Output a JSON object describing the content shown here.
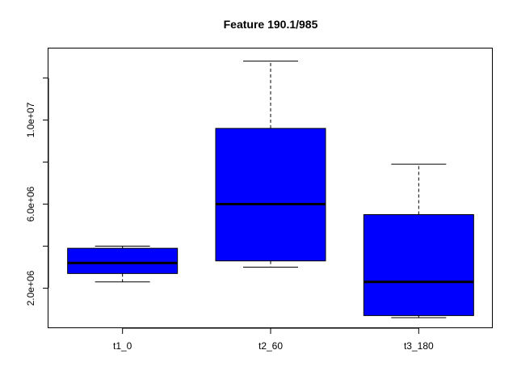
{
  "chart_data": {
    "type": "boxplot",
    "title": "Feature  190.1/985",
    "xlabel": "",
    "ylabel": "",
    "categories": [
      "t1_0",
      "t2_60",
      "t3_180"
    ],
    "boxes": [
      {
        "name": "t1_0",
        "whisker_low": 2300000,
        "q1": 2700000,
        "median": 3200000,
        "q3": 3900000,
        "whisker_high": 4000000
      },
      {
        "name": "t2_60",
        "whisker_low": 3000000,
        "q1": 3300000,
        "median": 6000000,
        "q3": 9600000,
        "whisker_high": 12800000
      },
      {
        "name": "t3_180",
        "whisker_low": 600000,
        "q1": 700000,
        "median": 2300000,
        "q3": 5500000,
        "whisker_high": 7900000
      }
    ],
    "ylim": [
      100000,
      13400000
    ],
    "y_ticks": [
      2000000,
      4000000,
      6000000,
      8000000,
      10000000,
      12000000
    ],
    "y_tick_labels": {
      "2000000": "2.0e+06",
      "6000000": "6.0e+06",
      "10000000": "1.0e+07"
    },
    "box_color": "#0000ff",
    "grid": false,
    "legend": "none"
  }
}
